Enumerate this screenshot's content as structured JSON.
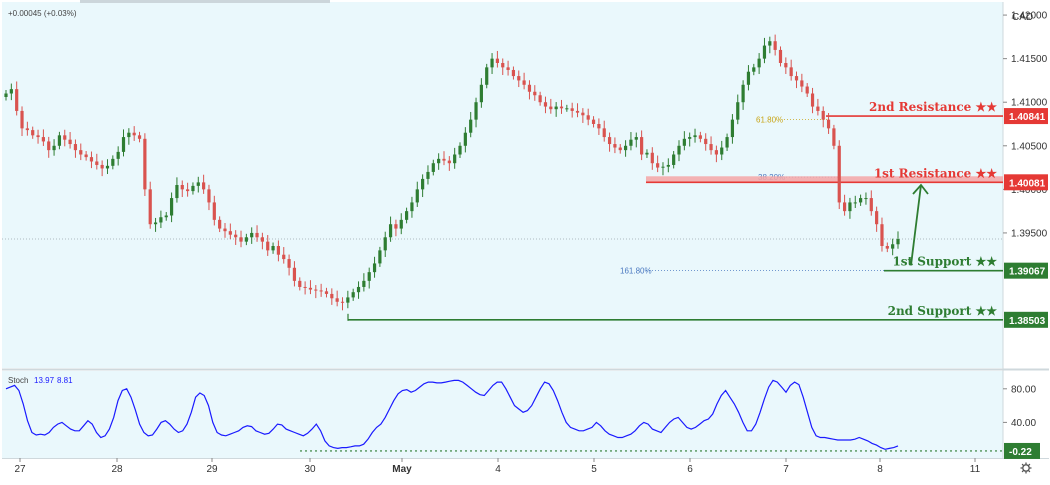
{
  "header": {
    "change": "+0.00045 (+0.03%)",
    "currency": "CAD"
  },
  "indicator": {
    "name": "Stoch",
    "k": "13.97",
    "d": "8.81"
  },
  "colors": {
    "background": "#eaf8fc",
    "up": "#2e7d32",
    "down": "#d9534f",
    "resistance": "#e53935",
    "support": "#2e7d32",
    "stoch": "#1a1aff"
  },
  "chart_data": {
    "type": "candlestick",
    "instrument_quote": "CAD",
    "price_axis": {
      "range": [
        1.3795,
        1.4215
      ],
      "ticks": [
        "1.42000",
        "1.41500",
        "1.41000",
        "1.40500",
        "1.40000",
        "1.39500"
      ]
    },
    "time_axis": {
      "ticks": [
        "27",
        "28",
        "29",
        "30",
        "May",
        "4",
        "5",
        "6",
        "7",
        "8",
        "11"
      ],
      "bold_tick": "May"
    },
    "levels": [
      {
        "label": "2nd Resistance ★★",
        "price_label": "1.40841",
        "value": 1.40841,
        "kind": "resistance"
      },
      {
        "label": "1st Resistance ★★",
        "price_label": "1.40081",
        "value": 1.40081,
        "kind": "resistance-zone",
        "zone_top": 1.4015
      },
      {
        "label": "1st Support ★★",
        "price_label": "1.39067",
        "value": 1.39067,
        "kind": "support"
      },
      {
        "label": "2nd Support ★★",
        "price_label": "1.38503",
        "value": 1.38503,
        "kind": "support"
      }
    ],
    "fibonacci": [
      {
        "label": "61.80%",
        "value": 1.408
      },
      {
        "label": "38.20%",
        "value": 1.4014
      },
      {
        "label": "161.80%",
        "value": 1.3907
      }
    ],
    "last_price": 1.3943,
    "closes": [
      1.411,
      1.4115,
      1.409,
      1.407,
      1.4068,
      1.4062,
      1.406,
      1.4055,
      1.4045,
      1.405,
      1.4062,
      1.4057,
      1.4052,
      1.4045,
      1.404,
      1.4037,
      1.4032,
      1.4028,
      1.4024,
      1.4027,
      1.4035,
      1.4043,
      1.406,
      1.4065,
      1.4062,
      1.4058,
      1.4,
      1.396,
      1.3962,
      1.3968,
      1.397,
      1.399,
      1.4005,
      1.4,
      1.3998,
      1.4004,
      1.4008,
      1.4,
      1.3985,
      1.3965,
      1.3955,
      1.3952,
      1.3948,
      1.3945,
      1.394,
      1.3945,
      1.395,
      1.3945,
      1.394,
      1.393,
      1.3935,
      1.3925,
      1.392,
      1.391,
      1.3895,
      1.3888,
      1.3887,
      1.3885,
      1.3884,
      1.3883,
      1.388,
      1.3875,
      1.3871,
      1.387,
      1.3876,
      1.3882,
      1.3888,
      1.3895,
      1.3905,
      1.3915,
      1.393,
      1.3945,
      1.396,
      1.3955,
      1.3965,
      1.3975,
      1.3985,
      1.4,
      1.4012,
      1.402,
      1.403,
      1.4035,
      1.4033,
      1.403,
      1.404,
      1.405,
      1.4065,
      1.408,
      1.41,
      1.412,
      1.414,
      1.415,
      1.4145,
      1.414,
      1.4137,
      1.413,
      1.4125,
      1.412,
      1.4112,
      1.4108,
      1.41,
      1.4095,
      1.4092,
      1.4095,
      1.4093,
      1.4093,
      1.409,
      1.4088,
      1.4085,
      1.408,
      1.4075,
      1.407,
      1.406,
      1.4052,
      1.4048,
      1.4045,
      1.405,
      1.4057,
      1.406,
      1.404,
      1.4042,
      1.403,
      1.4025,
      1.4026,
      1.4028,
      1.404,
      1.405,
      1.4058,
      1.406,
      1.4062,
      1.4058,
      1.4052,
      1.4045,
      1.404,
      1.4048,
      1.406,
      1.408,
      1.41,
      1.412,
      1.4135,
      1.414,
      1.415,
      1.4165,
      1.417,
      1.416,
      1.4145,
      1.414,
      1.413,
      1.4125,
      1.4118,
      1.411,
      1.4095,
      1.409,
      1.408,
      1.407,
      1.405,
      1.3985,
      1.3975,
      1.3985,
      1.3985,
      1.399,
      1.399,
      1.3975,
      1.396,
      1.3935,
      1.3932,
      1.3937,
      1.3943
    ],
    "stochastic": {
      "k_label": "13.97",
      "d_label": "8.81",
      "axis_ticks": [
        "80.00",
        "40.00"
      ],
      "last_value_label": "-0.22",
      "range": [
        0,
        100
      ],
      "values": [
        80,
        82,
        84,
        78,
        62,
        42,
        28,
        25,
        26,
        25,
        28,
        34,
        38,
        40,
        36,
        32,
        30,
        30,
        36,
        42,
        38,
        28,
        22,
        24,
        32,
        46,
        66,
        78,
        80,
        70,
        55,
        38,
        28,
        24,
        25,
        32,
        40,
        42,
        38,
        32,
        28,
        30,
        38,
        52,
        70,
        75,
        72,
        60,
        40,
        28,
        25,
        24,
        26,
        28,
        30,
        34,
        36,
        35,
        30,
        28,
        26,
        27,
        32,
        38,
        37,
        32,
        30,
        28,
        26,
        24,
        27,
        32,
        38,
        30,
        18,
        12,
        10,
        9,
        10,
        10,
        11,
        12,
        12,
        14,
        20,
        28,
        34,
        38,
        46,
        56,
        66,
        74,
        78,
        79,
        76,
        78,
        82,
        86,
        88,
        88,
        87,
        87,
        88,
        89,
        90,
        90,
        88,
        84,
        80,
        76,
        73,
        72,
        78,
        84,
        88,
        88,
        80,
        70,
        60,
        56,
        52,
        54,
        60,
        70,
        80,
        88,
        86,
        78,
        66,
        52,
        40,
        34,
        32,
        30,
        30,
        32,
        34,
        40,
        36,
        30,
        26,
        24,
        22,
        22,
        24,
        26,
        30,
        36,
        40,
        38,
        32,
        30,
        28,
        34,
        40,
        44,
        46,
        40,
        34,
        32,
        34,
        38,
        42,
        44,
        50,
        62,
        72,
        78,
        70,
        62,
        52,
        40,
        30,
        30,
        38,
        52,
        68,
        82,
        90,
        88,
        82,
        76,
        84,
        88,
        85,
        70,
        52,
        34,
        24,
        22,
        22,
        21,
        20,
        19,
        19,
        19,
        19,
        20,
        22,
        20,
        18,
        15,
        13,
        10,
        8,
        9,
        10,
        12
      ]
    }
  }
}
